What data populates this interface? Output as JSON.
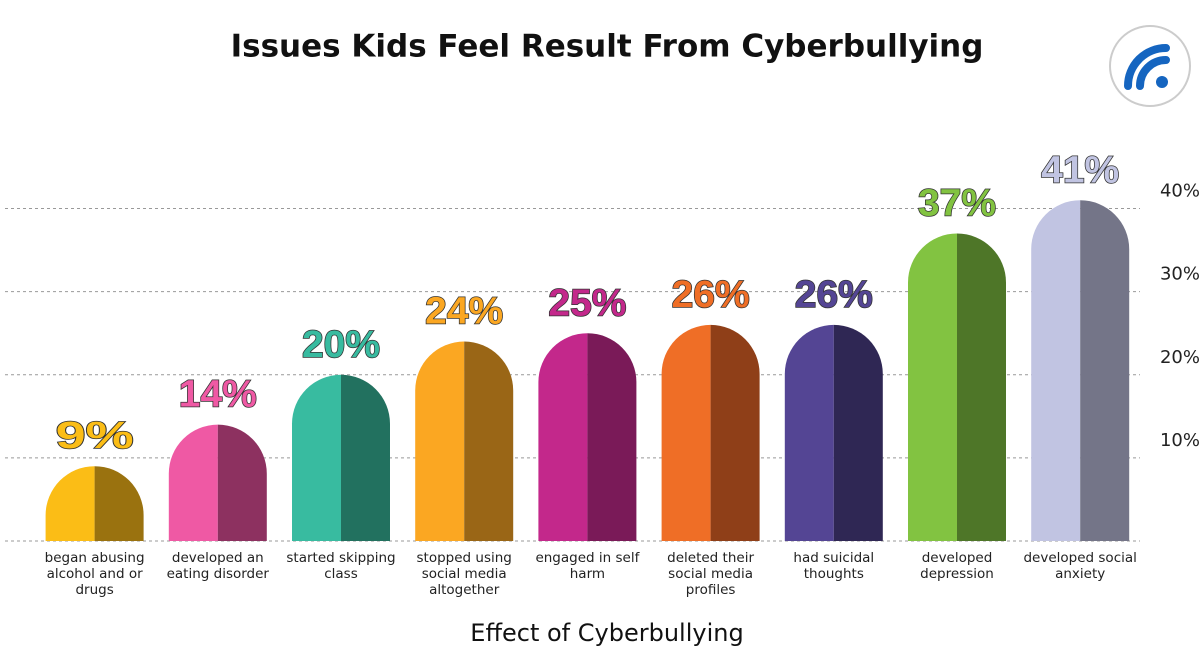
{
  "chart_data": {
    "type": "bar",
    "title": "Issues Kids Feel Result From Cyberbullying",
    "x_label": "Effect of Cyberbullying",
    "categories": [
      "began abusing alcohol and or drugs",
      "developed an eating disorder",
      "started skipping class",
      "stopped using social media altogether",
      "engaged in self harm",
      "deleted their social media profiles",
      "had suicidal thoughts",
      "developed depression",
      "developed social anxiety"
    ],
    "values": [
      9,
      14,
      20,
      24,
      25,
      26,
      26,
      37,
      41
    ],
    "value_labels": [
      "9%",
      "14%",
      "20%",
      "24%",
      "25%",
      "26%",
      "26%",
      "37%",
      "41%"
    ],
    "colors": [
      "#fbbd16",
      "#ef59a4",
      "#38bba0",
      "#fba722",
      "#c3288b",
      "#ef6e26",
      "#544594",
      "#82c341",
      "#c1c4e2"
    ],
    "dark_colors": [
      "#9a720f",
      "#8d3160",
      "#22715f",
      "#9a6616",
      "#7a1a58",
      "#8f3f18",
      "#2f2754",
      "#4e7628",
      "#747588"
    ],
    "ylim": [
      0,
      45
    ],
    "yticks": [
      {
        "value": 10,
        "label": "10%"
      },
      {
        "value": 20,
        "label": "20%"
      },
      {
        "value": 30,
        "label": "30%"
      },
      {
        "value": 40,
        "label": "40%"
      }
    ],
    "grid": true
  }
}
